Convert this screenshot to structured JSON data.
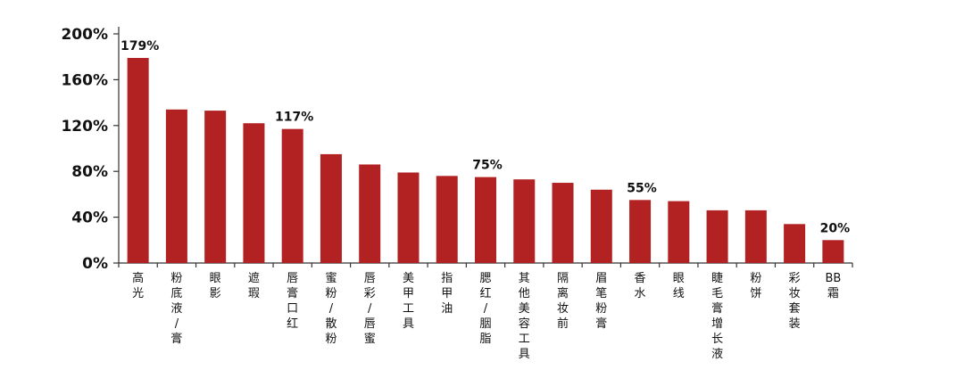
{
  "chart_data": {
    "type": "bar",
    "title": "",
    "xlabel": "",
    "ylabel": "",
    "ylim": [
      0,
      200
    ],
    "yticks": [
      0,
      40,
      80,
      120,
      160,
      200
    ],
    "ytick_labels": [
      "0%",
      "40%",
      "80%",
      "120%",
      "160%",
      "200%"
    ],
    "grid": false,
    "bar_color": "#b22222",
    "categories": [
      "高光",
      "粉底液/膏",
      "眼影",
      "遮瑕",
      "唇膏口红",
      "蜜粉/散粉",
      "唇彩/唇蜜",
      "美甲工具",
      "指甲油",
      "腮红/胭脂",
      "其他美容工具",
      "隔离妆前",
      "眉笔粉膏",
      "香水",
      "眼线",
      "睫毛膏增长液",
      "粉饼",
      "彩妆套装",
      "BB霜"
    ],
    "values": [
      179,
      134,
      133,
      122,
      117,
      95,
      86,
      79,
      76,
      75,
      73,
      70,
      64,
      55,
      54,
      46,
      46,
      34,
      20
    ],
    "data_labels": [
      {
        "index": 0,
        "text": "179%"
      },
      {
        "index": 4,
        "text": "117%"
      },
      {
        "index": 9,
        "text": "75%"
      },
      {
        "index": 13,
        "text": "55%"
      },
      {
        "index": 18,
        "text": "20%"
      }
    ]
  }
}
